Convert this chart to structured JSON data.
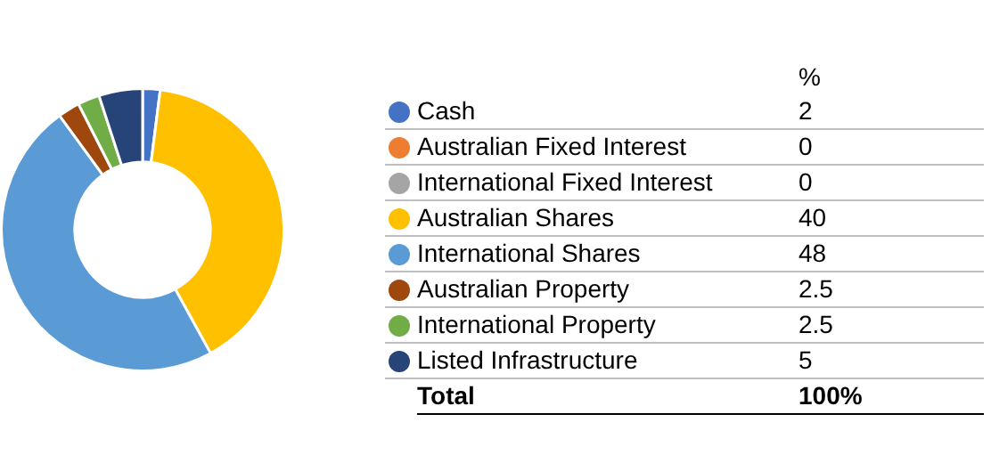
{
  "chart_data": {
    "type": "donut",
    "legend_title": "%",
    "categories": [
      "Cash",
      "Australian Fixed Interest",
      "International Fixed Interest",
      "Australian Shares",
      "International Shares",
      "Australian Property",
      "International Property",
      "Listed Infrastructure"
    ],
    "values": [
      2,
      0,
      0,
      40,
      48,
      2.5,
      2.5,
      5
    ],
    "colors": [
      "#4472c4",
      "#ed7d31",
      "#a5a5a5",
      "#ffc000",
      "#5b9bd5",
      "#9e480e",
      "#70ad47",
      "#264478"
    ],
    "value_labels": [
      "2",
      "0",
      "0",
      "40",
      "48",
      "2.5",
      "2.5",
      "5"
    ],
    "legend": "right",
    "annotations": [
      "Total",
      "100%"
    ]
  }
}
